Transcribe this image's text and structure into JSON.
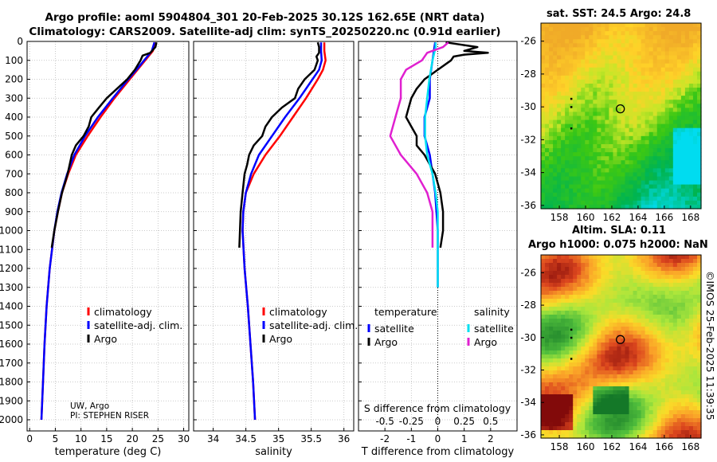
{
  "title": {
    "line1": "Argo profile: aoml 5904804_301 20-Feb-2025 30.12S 162.65E (NRT data)",
    "line2": "Climatology: CARS2009. Satellite-adj clim: synTS_20250220.nc (0.91d earlier)"
  },
  "colors": {
    "climatology": "#ff0000",
    "satellite_clim": "#0000ff",
    "argo": "#000000",
    "sal_satellite": "#00e0f0",
    "sal_argo": "#e020d0"
  },
  "chart_data": [
    {
      "type": "line",
      "id": "temperature",
      "xlabel": "temperature (deg C)",
      "xlim": [
        -0.5,
        31
      ],
      "xticks": [
        0,
        5,
        10,
        15,
        20,
        25,
        30
      ],
      "ylim": [
        0,
        2050
      ],
      "yticks": [
        0,
        100,
        200,
        300,
        400,
        500,
        600,
        700,
        800,
        900,
        1000,
        1100,
        1200,
        1300,
        1400,
        1500,
        1600,
        1700,
        1800,
        1900,
        2000
      ],
      "legend": [
        "climatology",
        "satellite-adj. clim.",
        "Argo"
      ],
      "note": [
        "UW, Argo",
        "PI: STEPHEN RISER"
      ],
      "series": [
        {
          "name": "climatology",
          "depth": [
            5,
            50,
            100,
            150,
            200,
            300,
            400,
            500,
            600,
            700,
            800,
            900,
            1000,
            1200,
            1400,
            1600,
            1800,
            2000
          ],
          "values": [
            24.4,
            24.0,
            22.5,
            21.0,
            19.5,
            16.5,
            13.8,
            11.3,
            9.0,
            7.5,
            6.3,
            5.5,
            4.8,
            3.9,
            3.3,
            2.9,
            2.6,
            2.3
          ]
        },
        {
          "name": "satellite-adj. clim.",
          "depth": [
            5,
            50,
            100,
            150,
            200,
            300,
            400,
            500,
            600,
            700,
            800,
            900,
            1000,
            1200,
            1400,
            1600,
            1800,
            2000
          ],
          "values": [
            24.3,
            23.8,
            22.3,
            20.8,
            19.2,
            16.2,
            13.3,
            10.8,
            8.7,
            7.3,
            6.2,
            5.4,
            4.8,
            3.9,
            3.3,
            2.9,
            2.6,
            2.3
          ]
        },
        {
          "name": "Argo",
          "depth": [
            5,
            30,
            60,
            75,
            100,
            150,
            200,
            250,
            300,
            350,
            400,
            450,
            500,
            550,
            600,
            650,
            700,
            800,
            900,
            1000,
            1090
          ],
          "values": [
            24.7,
            24.5,
            23.5,
            22.0,
            21.6,
            20.5,
            19.0,
            17.0,
            15.0,
            13.5,
            12.0,
            11.5,
            10.5,
            9.0,
            8.2,
            7.8,
            7.4,
            6.3,
            5.5,
            4.8,
            4.3
          ]
        }
      ]
    },
    {
      "type": "line",
      "id": "salinity",
      "xlabel": "salinity",
      "xlim": [
        33.7,
        36.15
      ],
      "xticks": [
        34,
        34.5,
        35,
        35.5,
        36
      ],
      "ylim": [
        0,
        2050
      ],
      "legend": [
        "climatology",
        "satellite-adj. clim.",
        "Argo"
      ],
      "series": [
        {
          "name": "climatology",
          "depth": [
            5,
            50,
            100,
            150,
            200,
            300,
            400,
            500,
            600,
            700,
            800,
            900,
            1000,
            1200,
            1400,
            1600,
            1800,
            2000
          ],
          "values": [
            35.7,
            35.7,
            35.72,
            35.68,
            35.6,
            35.42,
            35.22,
            35.02,
            34.8,
            34.62,
            34.5,
            34.46,
            34.45,
            34.48,
            34.53,
            34.57,
            34.61,
            34.64
          ]
        },
        {
          "name": "satellite-adj. clim.",
          "depth": [
            5,
            50,
            100,
            150,
            200,
            300,
            400,
            500,
            600,
            700,
            800,
            900,
            1000,
            1200,
            1400,
            1600,
            1800,
            2000
          ],
          "values": [
            35.65,
            35.65,
            35.66,
            35.62,
            35.52,
            35.32,
            35.1,
            34.9,
            34.7,
            34.58,
            34.5,
            34.46,
            34.45,
            34.48,
            34.53,
            34.57,
            34.61,
            34.64
          ]
        },
        {
          "name": "Argo",
          "depth": [
            5,
            30,
            60,
            80,
            100,
            150,
            200,
            250,
            300,
            350,
            400,
            450,
            500,
            550,
            600,
            650,
            700,
            800,
            900,
            1000,
            1090
          ],
          "values": [
            35.6,
            35.62,
            35.62,
            35.58,
            35.6,
            35.55,
            35.4,
            35.3,
            35.25,
            35.05,
            34.9,
            34.8,
            34.75,
            34.62,
            34.55,
            34.52,
            34.48,
            34.45,
            34.42,
            34.41,
            34.4
          ]
        }
      ]
    },
    {
      "type": "line",
      "id": "differences",
      "xlabel": "T difference from climatology",
      "xlabel_sal": "S difference from climatology",
      "xlim": [
        -3,
        3
      ],
      "xticks": [
        -2,
        -1,
        0,
        1,
        2
      ],
      "xticks_sal": [
        "-0.5",
        "-0.25",
        "0",
        "0.25",
        "0.5"
      ],
      "ylim": [
        0,
        2050
      ],
      "legend_temperature": {
        "header": "temperature",
        "items": [
          "satellite",
          "Argo"
        ]
      },
      "legend_salinity": {
        "header": "salinity",
        "items": [
          "satellite",
          "Argo"
        ]
      },
      "series": [
        {
          "name": "temperature satellite",
          "depth": [
            5,
            100,
            200,
            300,
            400,
            500,
            600,
            700,
            800,
            1000,
            1300
          ],
          "values": [
            -0.1,
            -0.2,
            -0.3,
            -0.3,
            -0.5,
            -0.5,
            -0.3,
            -0.2,
            -0.1,
            0,
            0
          ]
        },
        {
          "name": "temperature Argo",
          "depth": [
            5,
            30,
            50,
            60,
            70,
            80,
            100,
            150,
            200,
            250,
            300,
            350,
            400,
            450,
            500,
            550,
            600,
            650,
            700,
            800,
            900,
            1000,
            1090
          ],
          "values": [
            0.3,
            1.5,
            1.0,
            1.9,
            1.0,
            0.6,
            0.5,
            0.0,
            -0.5,
            -0.8,
            -1.0,
            -1.1,
            -1.2,
            -1.0,
            -0.8,
            -0.8,
            -0.5,
            -0.3,
            -0.1,
            0.1,
            0.2,
            0.2,
            0.1
          ]
        },
        {
          "name": "salinity satellite",
          "depth": [
            5,
            30,
            100,
            200,
            300,
            400,
            500,
            600,
            700,
            800,
            900,
            1000,
            1300
          ],
          "values": [
            -0.02,
            -0.02,
            -0.05,
            -0.08,
            -0.1,
            -0.12,
            -0.12,
            -0.1,
            -0.05,
            -0.02,
            0,
            0,
            0
          ]
        },
        {
          "name": "salinity Argo",
          "depth": [
            5,
            30,
            60,
            100,
            150,
            200,
            300,
            400,
            500,
            600,
            700,
            800,
            900,
            1000,
            1090
          ],
          "values": [
            0.1,
            0.05,
            -0.1,
            -0.15,
            -0.3,
            -0.35,
            -0.35,
            -0.4,
            -0.45,
            -0.35,
            -0.2,
            -0.1,
            -0.05,
            -0.05,
            -0.05
          ]
        }
      ]
    },
    {
      "type": "heatmap",
      "id": "sst-map",
      "title": "sat. SST: 24.5 Argo: 24.8",
      "xticks": [
        158,
        160,
        162,
        164,
        166,
        168
      ],
      "yticks": [
        -26,
        -28,
        -30,
        -32,
        -34,
        -36
      ],
      "xlim": [
        156.6,
        168.8
      ],
      "ylim": [
        -36.2,
        -24.9
      ],
      "argo_position": [
        162.65,
        -30.12
      ]
    },
    {
      "type": "heatmap",
      "id": "sla-map",
      "title_line1": "Altim. SLA: 0.11",
      "title_line2": "Argo h1000: 0.075 h2000: NaN",
      "xticks": [
        158,
        160,
        162,
        164,
        166,
        168
      ],
      "yticks": [
        -26,
        -28,
        -30,
        -32,
        -34,
        -36
      ],
      "xlim": [
        156.6,
        168.8
      ],
      "ylim": [
        -36.2,
        -24.9
      ],
      "argo_position": [
        162.65,
        -30.12
      ]
    }
  ],
  "timestamp": "©IMOS 25-Feb-2025 11:39:35"
}
